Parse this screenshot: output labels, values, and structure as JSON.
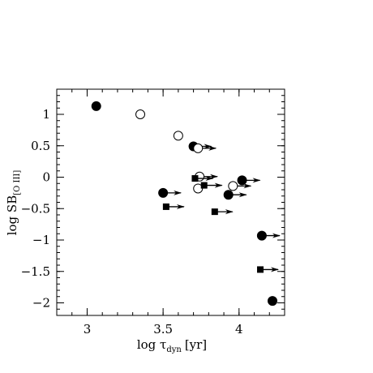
{
  "chart_data": {
    "type": "scatter",
    "title": "",
    "xlabel": "log τ",
    "xlabel_sub": "dyn",
    "xlabel_unit": "[yr]",
    "ylabel": "log SB",
    "ylabel_sub": "[O III]",
    "xlim": [
      2.8,
      4.3
    ],
    "ylim": [
      -2.2,
      1.4
    ],
    "x_ticks": [
      3,
      3.5,
      4
    ],
    "x_tick_labels": [
      "3",
      "3.5",
      "4"
    ],
    "y_ticks": [
      1,
      0.5,
      0,
      -0.5,
      -1,
      -1.5,
      -2
    ],
    "y_tick_labels": [
      "1",
      "0.5",
      "0",
      "−0.5",
      "−1",
      "−1.5",
      "−2"
    ],
    "x_minor_step": 0.1,
    "y_minor_step": 0.1,
    "grid": false,
    "legend": "none",
    "series": [
      {
        "marker": "filled-circle",
        "points": [
          {
            "x": 3.06,
            "y": 1.13,
            "lower_limit": false
          },
          {
            "x": 3.7,
            "y": 0.49,
            "lower_limit": true
          },
          {
            "x": 3.5,
            "y": -0.25,
            "lower_limit": true
          },
          {
            "x": 4.02,
            "y": -0.05,
            "lower_limit": true
          },
          {
            "x": 3.93,
            "y": -0.28,
            "lower_limit": true
          },
          {
            "x": 4.15,
            "y": -0.93,
            "lower_limit": true
          },
          {
            "x": 4.22,
            "y": -1.97,
            "lower_limit": false
          }
        ]
      },
      {
        "marker": "open-circle",
        "points": [
          {
            "x": 3.35,
            "y": 1.0,
            "lower_limit": false
          },
          {
            "x": 3.6,
            "y": 0.66,
            "lower_limit": false
          },
          {
            "x": 3.73,
            "y": 0.46,
            "lower_limit": true
          },
          {
            "x": 3.74,
            "y": 0.01,
            "lower_limit": true
          },
          {
            "x": 3.73,
            "y": -0.18,
            "lower_limit": false
          },
          {
            "x": 3.96,
            "y": -0.14,
            "lower_limit": true
          }
        ]
      },
      {
        "marker": "filled-square",
        "points": [
          {
            "x": 3.71,
            "y": -0.02,
            "lower_limit": true
          },
          {
            "x": 3.77,
            "y": -0.13,
            "lower_limit": true
          },
          {
            "x": 3.52,
            "y": -0.47,
            "lower_limit": true
          },
          {
            "x": 3.84,
            "y": -0.55,
            "lower_limit": true
          },
          {
            "x": 4.14,
            "y": -1.47,
            "lower_limit": true
          }
        ]
      }
    ]
  }
}
